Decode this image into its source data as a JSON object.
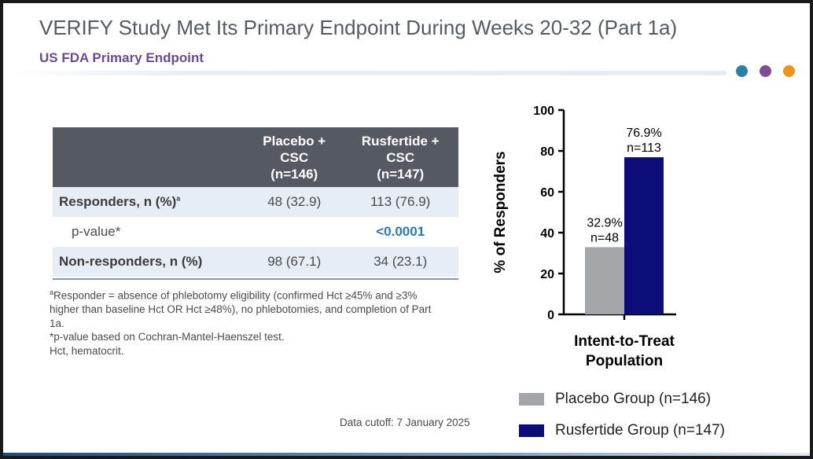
{
  "header": {
    "title": "VERIFY Study Met Its Primary Endpoint During Weeks 20-32 (Part 1a)",
    "subtitle": "US FDA Primary Endpoint"
  },
  "decor_dots": [
    "#2e7fa6",
    "#7e4d98",
    "#f0921e"
  ],
  "table": {
    "col1_lines": [
      "Placebo +",
      "CSC",
      "(n=146)"
    ],
    "col2_lines": [
      "Rusfertide +",
      "CSC",
      "(n=147)"
    ],
    "responders": {
      "label": "Responders, n (%)",
      "sup": "a",
      "placebo": "48 (32.9)",
      "rusfertide": "113 (76.9)"
    },
    "pvalue": {
      "label": "p-value*",
      "rusfertide": "<0.0001"
    },
    "nonresponders": {
      "label": "Non-responders, n (%)",
      "placebo": "98 (67.1)",
      "rusfertide": "34 (23.1)"
    }
  },
  "footnotes": {
    "responder_sup": "a",
    "responder_text": "Responder = absence of phlebotomy eligibility (confirmed Hct ≥45% and ≥3% higher than baseline Hct OR Hct ≥48%), no phlebotomies, and completion of Part 1a.",
    "pvalue_text": "*p-value based on Cochran-Mantel-Haenszel test.",
    "abbrev_text": "Hct, hematocrit."
  },
  "data_cutoff": "Data cutoff: 7 January 2025",
  "chart_data": {
    "type": "bar",
    "categories": [
      "Intent-to-Treat Population"
    ],
    "category_lines": [
      "Intent-to-Treat",
      "Population"
    ],
    "series": [
      {
        "name": "Placebo Group (n=146)",
        "values": [
          32.9
        ],
        "labels": [
          "32.9%",
          "n=48"
        ],
        "color": "#a3a5a8"
      },
      {
        "name": "Rusfertide Group (n=147)",
        "values": [
          76.9
        ],
        "labels": [
          "76.9%",
          "n=113"
        ],
        "color": "#0d0d7a"
      }
    ],
    "ylabel": "% of Responders",
    "ylim": [
      0,
      100
    ],
    "yticks": [
      0,
      20,
      40,
      60,
      80,
      100
    ],
    "legend": "bottom-right",
    "grid": false
  }
}
